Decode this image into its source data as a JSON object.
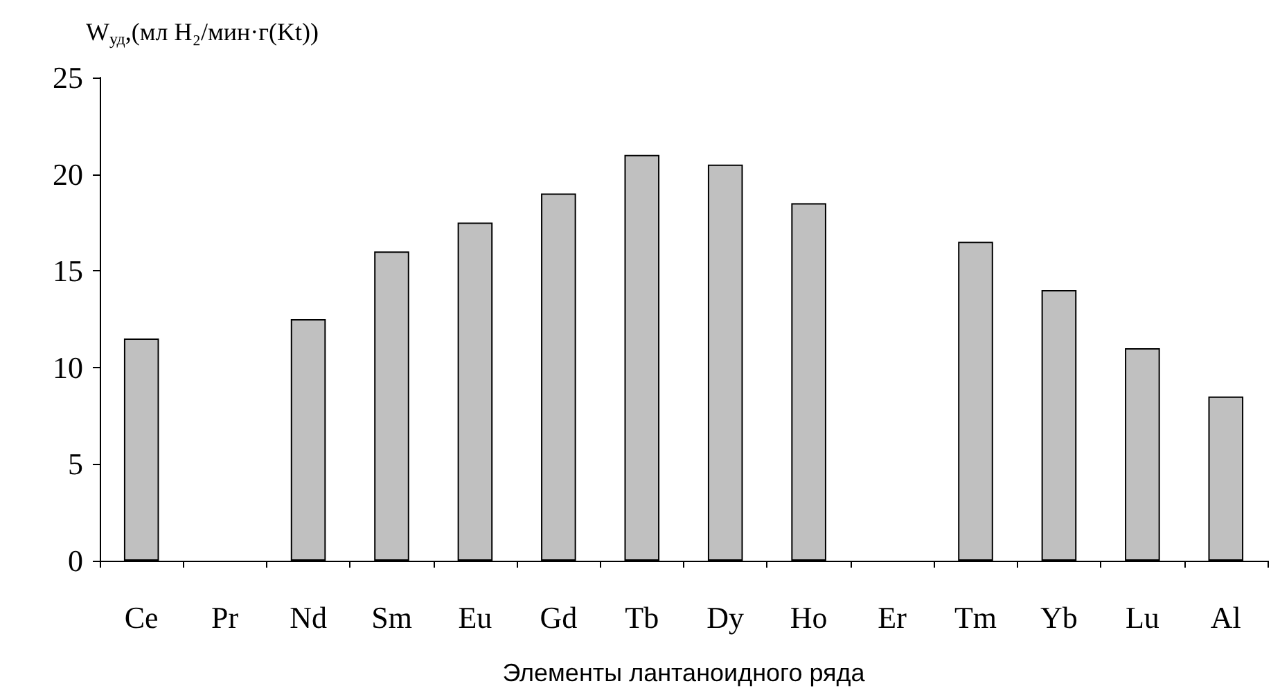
{
  "chart_data": {
    "type": "bar",
    "ylabel": "W$_{уд}$,(мл H₂/мин·г(Kt))",
    "xlabel": "Элементы лантаноидного ряда",
    "categories": [
      "Ce",
      "Pr",
      "Nd",
      "Sm",
      "Eu",
      "Gd",
      "Tb",
      "Dy",
      "Ho",
      "Er",
      "Tm",
      "Yb",
      "Lu",
      "Al"
    ],
    "values": [
      11.5,
      null,
      12.5,
      16,
      17.5,
      19,
      21,
      20.5,
      18.5,
      null,
      16.5,
      14,
      11,
      8.5
    ],
    "color": "#c0c0c0",
    "ylim": [
      0,
      25
    ],
    "yticks": [
      0,
      5,
      10,
      15,
      20,
      25
    ],
    "grid": false
  }
}
